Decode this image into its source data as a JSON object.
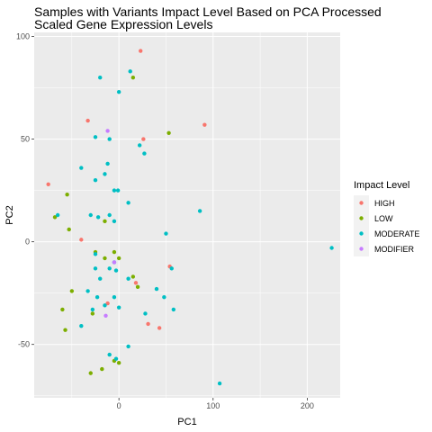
{
  "chart_data": {
    "type": "scatter",
    "title_lines": [
      "Samples with Variants Impact Level Based on PCA Processed",
      "Scaled Gene Expression Levels"
    ],
    "xlabel": "PC1",
    "ylabel": "PC2",
    "xlim": [
      -90,
      235
    ],
    "ylim": [
      -76,
      102
    ],
    "x_ticks": [
      0,
      100,
      200
    ],
    "y_ticks": [
      -50,
      0,
      50,
      100
    ],
    "grid": true,
    "legend": {
      "title": "Impact Level",
      "position": "right"
    },
    "series": [
      {
        "name": "HIGH",
        "color": "#F8766D",
        "points": [
          [
            23,
            93
          ],
          [
            -33,
            59
          ],
          [
            91,
            57
          ],
          [
            26,
            50
          ],
          [
            -75,
            28
          ],
          [
            -40,
            1
          ],
          [
            54,
            -12
          ],
          [
            18,
            -20
          ],
          [
            -12,
            -30
          ],
          [
            31,
            -40
          ],
          [
            43,
            -42
          ]
        ]
      },
      {
        "name": "LOW",
        "color": "#7CAE00",
        "points": [
          [
            15,
            80
          ],
          [
            53,
            53
          ],
          [
            -55,
            23
          ],
          [
            -68,
            12
          ],
          [
            -53,
            6
          ],
          [
            -15,
            10
          ],
          [
            -25,
            -5
          ],
          [
            -15,
            -8
          ],
          [
            0,
            -8
          ],
          [
            -5,
            -5
          ],
          [
            15,
            -17
          ],
          [
            20,
            -22
          ],
          [
            -50,
            -24
          ],
          [
            -60,
            -33
          ],
          [
            -28,
            -35
          ],
          [
            -57,
            -43
          ],
          [
            -30,
            -64
          ],
          [
            -18,
            -62
          ],
          [
            -5,
            -58
          ],
          [
            0,
            -59
          ]
        ]
      },
      {
        "name": "MODERATE",
        "color": "#00BFC4",
        "points": [
          [
            -20,
            80
          ],
          [
            12,
            83
          ],
          [
            0,
            73
          ],
          [
            22,
            47
          ],
          [
            27,
            43
          ],
          [
            -25,
            51
          ],
          [
            -10,
            50
          ],
          [
            -40,
            36
          ],
          [
            -12,
            38
          ],
          [
            -15,
            33
          ],
          [
            -25,
            30
          ],
          [
            -5,
            25
          ],
          [
            -1,
            25
          ],
          [
            -30,
            13
          ],
          [
            -10,
            13
          ],
          [
            -22,
            12
          ],
          [
            -65,
            13
          ],
          [
            10,
            19
          ],
          [
            -5,
            10
          ],
          [
            86,
            15
          ],
          [
            226,
            -3
          ],
          [
            50,
            4
          ],
          [
            -25,
            -13
          ],
          [
            -10,
            -13
          ],
          [
            -25,
            -6
          ],
          [
            -5,
            -10
          ],
          [
            -3,
            -14
          ],
          [
            -20,
            -18
          ],
          [
            10,
            -18
          ],
          [
            -33,
            -24
          ],
          [
            -23,
            -27
          ],
          [
            -5,
            -27
          ],
          [
            -15,
            -31
          ],
          [
            -28,
            -33
          ],
          [
            0,
            -32
          ],
          [
            48,
            -27
          ],
          [
            56,
            -13
          ],
          [
            58,
            -33
          ],
          [
            28,
            -35
          ],
          [
            40,
            -23
          ],
          [
            -40,
            -41
          ],
          [
            10,
            -51
          ],
          [
            -10,
            -55
          ],
          [
            -3,
            -57
          ],
          [
            107,
            -69
          ]
        ]
      },
      {
        "name": "MODIFIER",
        "color": "#C77CFF",
        "points": [
          [
            -12,
            54
          ],
          [
            -5,
            -10
          ],
          [
            -14,
            -36
          ]
        ]
      }
    ]
  }
}
